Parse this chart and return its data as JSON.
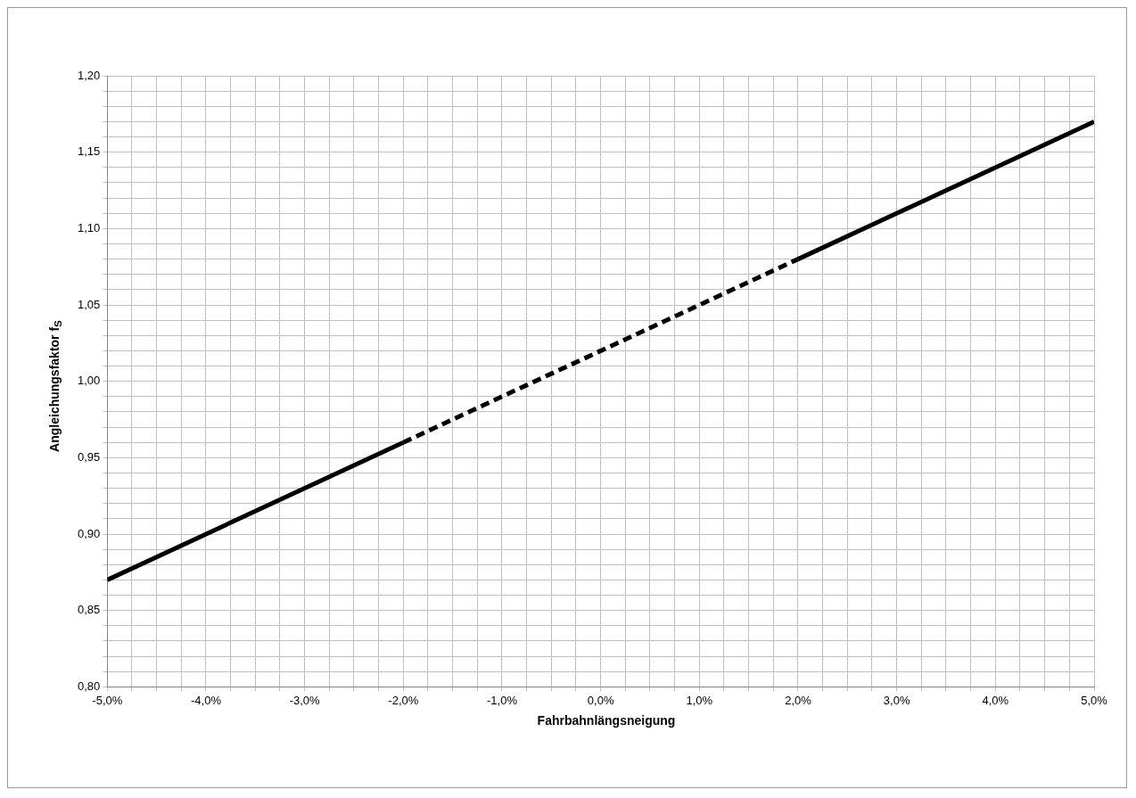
{
  "chart_data": {
    "type": "line",
    "xlabel": "Fahrbahnlängsneigung",
    "ylabel": "Angleichungsfaktor f$_{S}$",
    "xlim": [
      -5,
      5
    ],
    "ylim": [
      0.8,
      1.2
    ],
    "xticks": [
      {
        "value": -5,
        "label": "-5,0%"
      },
      {
        "value": -4.75,
        "label": null
      },
      {
        "value": -4.5,
        "label": null
      },
      {
        "value": -4.25,
        "label": null
      },
      {
        "value": -4,
        "label": "-4,0%"
      },
      {
        "value": -3.75,
        "label": null
      },
      {
        "value": -3.5,
        "label": null
      },
      {
        "value": -3.25,
        "label": null
      },
      {
        "value": -3,
        "label": "-3,0%"
      },
      {
        "value": -2.75,
        "label": null
      },
      {
        "value": -2.5,
        "label": null
      },
      {
        "value": -2.25,
        "label": null
      },
      {
        "value": -2,
        "label": "-2,0%"
      },
      {
        "value": -1.75,
        "label": null
      },
      {
        "value": -1.5,
        "label": null
      },
      {
        "value": -1.25,
        "label": null
      },
      {
        "value": -1,
        "label": "-1,0%"
      },
      {
        "value": -0.75,
        "label": null
      },
      {
        "value": -0.5,
        "label": null
      },
      {
        "value": -0.25,
        "label": null
      },
      {
        "value": 0,
        "label": "0,0%"
      },
      {
        "value": 0.25,
        "label": null
      },
      {
        "value": 0.5,
        "label": null
      },
      {
        "value": 0.75,
        "label": null
      },
      {
        "value": 1,
        "label": "1,0%"
      },
      {
        "value": 1.25,
        "label": null
      },
      {
        "value": 1.5,
        "label": null
      },
      {
        "value": 1.75,
        "label": null
      },
      {
        "value": 2,
        "label": "2,0%"
      },
      {
        "value": 2.25,
        "label": null
      },
      {
        "value": 2.5,
        "label": null
      },
      {
        "value": 2.75,
        "label": null
      },
      {
        "value": 3,
        "label": "3,0%"
      },
      {
        "value": 3.25,
        "label": null
      },
      {
        "value": 3.5,
        "label": null
      },
      {
        "value": 3.75,
        "label": null
      },
      {
        "value": 4,
        "label": "4,0%"
      },
      {
        "value": 4.25,
        "label": null
      },
      {
        "value": 4.5,
        "label": null
      },
      {
        "value": 4.75,
        "label": null
      },
      {
        "value": 5,
        "label": "5,0%"
      }
    ],
    "yticks": [
      {
        "value": 0.8,
        "label": "0,80"
      },
      {
        "value": 0.81,
        "label": null
      },
      {
        "value": 0.82,
        "label": null
      },
      {
        "value": 0.83,
        "label": null
      },
      {
        "value": 0.84,
        "label": null
      },
      {
        "value": 0.85,
        "label": "0,85"
      },
      {
        "value": 0.86,
        "label": null
      },
      {
        "value": 0.87,
        "label": null
      },
      {
        "value": 0.88,
        "label": null
      },
      {
        "value": 0.89,
        "label": null
      },
      {
        "value": 0.9,
        "label": "0,90"
      },
      {
        "value": 0.91,
        "label": null
      },
      {
        "value": 0.92,
        "label": null
      },
      {
        "value": 0.93,
        "label": null
      },
      {
        "value": 0.94,
        "label": null
      },
      {
        "value": 0.95,
        "label": "0,95"
      },
      {
        "value": 0.96,
        "label": null
      },
      {
        "value": 0.97,
        "label": null
      },
      {
        "value": 0.98,
        "label": null
      },
      {
        "value": 0.99,
        "label": null
      },
      {
        "value": 1.0,
        "label": "1,00"
      },
      {
        "value": 1.01,
        "label": null
      },
      {
        "value": 1.02,
        "label": null
      },
      {
        "value": 1.03,
        "label": null
      },
      {
        "value": 1.04,
        "label": null
      },
      {
        "value": 1.05,
        "label": "1,05"
      },
      {
        "value": 1.06,
        "label": null
      },
      {
        "value": 1.07,
        "label": null
      },
      {
        "value": 1.08,
        "label": null
      },
      {
        "value": 1.09,
        "label": null
      },
      {
        "value": 1.1,
        "label": "1,10"
      },
      {
        "value": 1.11,
        "label": null
      },
      {
        "value": 1.12,
        "label": null
      },
      {
        "value": 1.13,
        "label": null
      },
      {
        "value": 1.14,
        "label": null
      },
      {
        "value": 1.15,
        "label": "1,15"
      },
      {
        "value": 1.16,
        "label": null
      },
      {
        "value": 1.17,
        "label": null
      },
      {
        "value": 1.18,
        "label": null
      },
      {
        "value": 1.19,
        "label": null
      },
      {
        "value": 1.2,
        "label": "1,20"
      }
    ],
    "grid": true,
    "legend": false,
    "marker": "none",
    "series": [
      {
        "color": "#000000",
        "line_style": "solid",
        "x": [
          -5,
          -2
        ],
        "values": [
          0.87,
          0.96
        ]
      },
      {
        "color": "#000000",
        "line_style": "dashed",
        "x": [
          -2,
          2
        ],
        "values": [
          0.96,
          1.08
        ]
      },
      {
        "color": "#000000",
        "line_style": "solid",
        "x": [
          2,
          5
        ],
        "values": [
          1.08,
          1.17
        ]
      }
    ]
  }
}
